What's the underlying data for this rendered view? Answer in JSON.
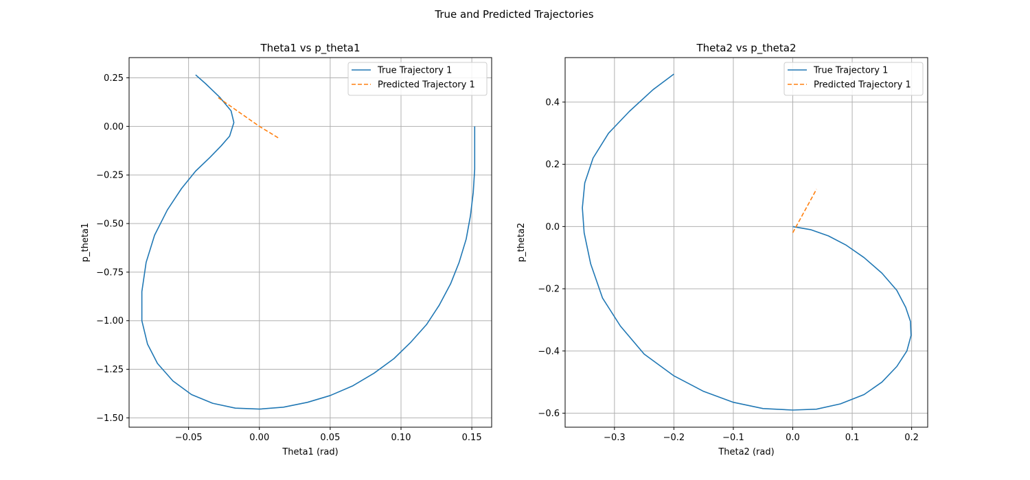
{
  "figure": {
    "suptitle": "True and Predicted Trajectories"
  },
  "colors": {
    "true": "#1f77b4",
    "pred": "#ff7f0e",
    "grid": "#b0b0b0",
    "legend_border": "#cccccc"
  },
  "chart_data": [
    {
      "type": "line",
      "title": "Theta1 vs p_theta1",
      "xlabel": "Theta1 (rad)",
      "ylabel": "p_theta1",
      "xlim": [
        -0.092,
        0.164
      ],
      "ylim": [
        -1.548,
        0.354
      ],
      "xticks": [
        -0.05,
        0.0,
        0.05,
        0.1,
        0.15
      ],
      "xtick_labels": [
        "−0.05",
        "0.00",
        "0.05",
        "0.10",
        "0.15"
      ],
      "yticks": [
        0.25,
        0.0,
        -0.25,
        -0.5,
        -0.75,
        -1.0,
        -1.25,
        -1.5
      ],
      "ytick_labels": [
        "0.25",
        "0.00",
        "−0.25",
        "−0.50",
        "−0.75",
        "−1.00",
        "−1.25",
        "−1.50"
      ],
      "grid": true,
      "legend": "top-right",
      "series": [
        {
          "name": "True Trajectory 1",
          "style": "solid",
          "color": "#1f77b4",
          "x": [
            0.152,
            0.152,
            0.152,
            0.151,
            0.149,
            0.146,
            0.141,
            0.135,
            0.127,
            0.118,
            0.107,
            0.095,
            0.081,
            0.066,
            0.05,
            0.034,
            0.017,
            0.0,
            -0.017,
            -0.033,
            -0.048,
            -0.061,
            -0.072,
            -0.079,
            -0.083,
            -0.083,
            -0.08,
            -0.074,
            -0.065,
            -0.055,
            -0.045,
            -0.035,
            -0.027,
            -0.021,
            -0.018,
            -0.02,
            -0.028,
            -0.038,
            -0.045
          ],
          "y": [
            0.0,
            -0.1,
            -0.22,
            -0.34,
            -0.46,
            -0.58,
            -0.7,
            -0.81,
            -0.92,
            -1.02,
            -1.11,
            -1.195,
            -1.27,
            -1.335,
            -1.385,
            -1.42,
            -1.445,
            -1.455,
            -1.45,
            -1.425,
            -1.38,
            -1.31,
            -1.22,
            -1.12,
            -1.0,
            -0.85,
            -0.7,
            -0.56,
            -0.43,
            -0.32,
            -0.23,
            -0.16,
            -0.1,
            -0.05,
            0.02,
            0.08,
            0.15,
            0.22,
            0.265
          ]
        },
        {
          "name": "Predicted Trajectory 1",
          "style": "dashed",
          "color": "#ff7f0e",
          "x": [
            -0.029,
            0.0,
            0.014
          ],
          "y": [
            0.148,
            0.0,
            -0.062
          ]
        }
      ]
    },
    {
      "type": "line",
      "title": "Theta2 vs p_theta2",
      "xlabel": "Theta2 (rad)",
      "ylabel": "p_theta2",
      "xlim": [
        -0.383,
        0.227
      ],
      "ylim": [
        -0.645,
        0.543
      ],
      "xticks": [
        -0.3,
        -0.2,
        -0.1,
        0.0,
        0.1,
        0.2
      ],
      "xtick_labels": [
        "−0.3",
        "−0.2",
        "−0.1",
        "0.0",
        "0.1",
        "0.2"
      ],
      "yticks": [
        0.4,
        0.2,
        0.0,
        -0.2,
        -0.4,
        -0.6
      ],
      "ytick_labels": [
        "0.4",
        "0.2",
        "0.0",
        "−0.2",
        "−0.4",
        "−0.6"
      ],
      "grid": true,
      "legend": "top-right",
      "series": [
        {
          "name": "True Trajectory 1",
          "style": "solid",
          "color": "#1f77b4",
          "x": [
            0.0,
            0.03,
            0.06,
            0.09,
            0.12,
            0.15,
            0.175,
            0.19,
            0.198,
            0.199,
            0.192,
            0.175,
            0.15,
            0.12,
            0.08,
            0.04,
            0.0,
            -0.05,
            -0.1,
            -0.15,
            -0.2,
            -0.25,
            -0.29,
            -0.32,
            -0.34,
            -0.351,
            -0.354,
            -0.35,
            -0.336,
            -0.31,
            -0.275,
            -0.235,
            -0.2
          ],
          "y": [
            0.0,
            -0.01,
            -0.03,
            -0.06,
            -0.1,
            -0.15,
            -0.205,
            -0.26,
            -0.305,
            -0.35,
            -0.4,
            -0.45,
            -0.5,
            -0.54,
            -0.57,
            -0.587,
            -0.59,
            -0.585,
            -0.565,
            -0.53,
            -0.48,
            -0.41,
            -0.32,
            -0.23,
            -0.12,
            -0.02,
            0.06,
            0.14,
            0.22,
            0.3,
            0.37,
            0.44,
            0.49
          ]
        },
        {
          "name": "Predicted Trajectory 1",
          "style": "dashed",
          "color": "#ff7f0e",
          "x": [
            0.0,
            0.04
          ],
          "y": [
            -0.02,
            0.12
          ]
        }
      ]
    }
  ]
}
